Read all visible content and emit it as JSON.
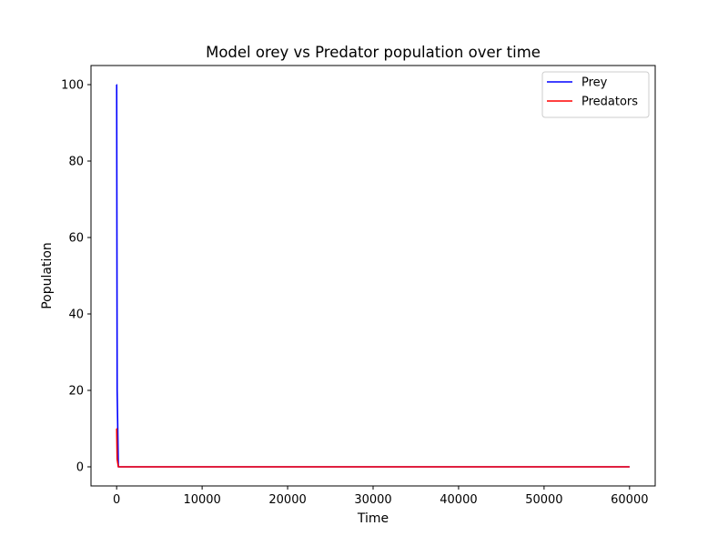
{
  "chart_data": {
    "type": "line",
    "title": "Model orey vs Predator population over time",
    "xlabel": "Time",
    "ylabel": "Population",
    "xlim": [
      -3000,
      63000
    ],
    "ylim": [
      -5,
      105
    ],
    "xticks": [
      0,
      10000,
      20000,
      30000,
      40000,
      50000,
      60000
    ],
    "yticks": [
      0,
      20,
      40,
      60,
      80,
      100
    ],
    "grid": false,
    "legend_position": "top-right",
    "series": [
      {
        "name": "Prey",
        "color": "#0000ff",
        "x": [
          0,
          5,
          60,
          200,
          60000
        ],
        "y": [
          100,
          100,
          20,
          0,
          0
        ]
      },
      {
        "name": "Predators",
        "color": "#ff0000",
        "x": [
          0,
          5,
          60,
          200,
          60000
        ],
        "y": [
          10,
          10,
          2,
          0,
          0
        ]
      }
    ]
  }
}
